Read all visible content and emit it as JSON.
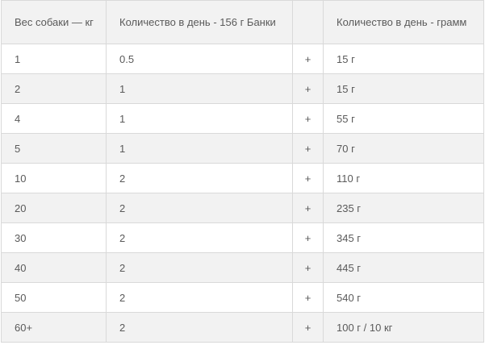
{
  "table": {
    "headers": [
      "Вес собаки — кг",
      "Количество в день - 156 г Банки",
      "",
      "Количество в день - грамм"
    ],
    "rows": [
      [
        "1",
        "0.5",
        "+",
        "15 г"
      ],
      [
        "2",
        "1",
        "+",
        "15 г"
      ],
      [
        "4",
        "1",
        "+",
        "55 г"
      ],
      [
        "5",
        "1",
        "+",
        "70 г"
      ],
      [
        "10",
        "2",
        "+",
        "110 г"
      ],
      [
        "20",
        "2",
        "+",
        "235 г"
      ],
      [
        "30",
        "2",
        "+",
        "345 г"
      ],
      [
        "40",
        "2",
        "+",
        "445 г"
      ],
      [
        "50",
        "2",
        "+",
        "540 г"
      ],
      [
        "60+",
        "2",
        "+",
        "100 г / 10 кг"
      ]
    ]
  }
}
